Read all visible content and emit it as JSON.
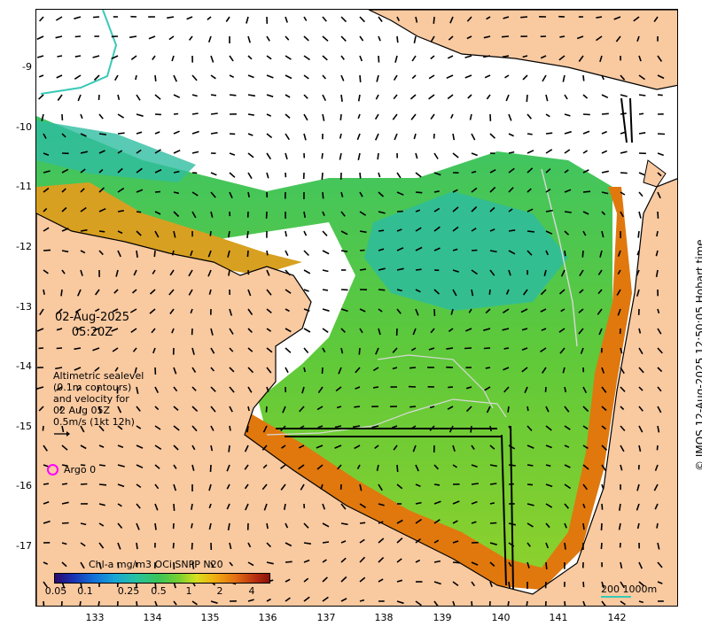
{
  "map": {
    "lat_ticks": [
      "-9",
      "-10",
      "-11",
      "-12",
      "-13",
      "-14",
      "-15",
      "-16",
      "-17"
    ],
    "lon_ticks": [
      "133",
      "134",
      "135",
      "136",
      "137",
      "138",
      "139",
      "140",
      "141",
      "142"
    ],
    "colors": {
      "land": "#f9c9a0",
      "ocean_nodata": "#ffffff",
      "coastline": "#000000",
      "contour": "#d8d8d8",
      "argo": "#ff00ff",
      "scale_bar": "#38c9b6"
    }
  },
  "annotation": {
    "date": "02-Aug-2025",
    "time": "05:20Z",
    "alt_lines": [
      "Altimetric sealevel",
      "(0.1m contours)",
      "and velocity for",
      "02 Aug 05Z",
      "0.5m/s (1kt 12h)"
    ]
  },
  "legend": {
    "argo_label": "Argo 0",
    "colorbar_title": "Chl-a mg/m3 OCi SNPP N20",
    "colorbar_ticks": [
      "0.05",
      "0.1",
      "0.25",
      "0.5",
      "1",
      "2",
      "4"
    ],
    "scale_label": "200  1000m"
  },
  "credit": "© IMOS 12-Aug-2025 12:50:05 Hobart time"
}
